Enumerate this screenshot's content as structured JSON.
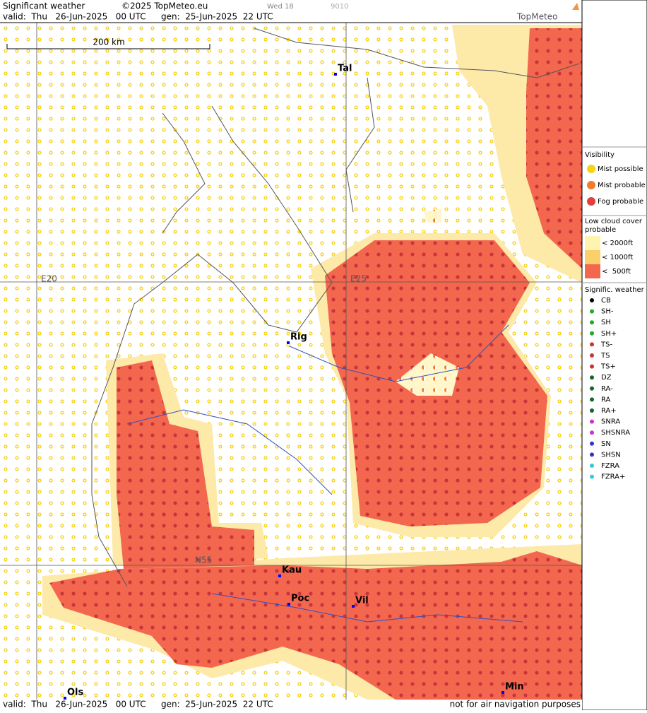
{
  "header": {
    "title": "Significant weather",
    "copyright": "©2025 TopMeteo.eu",
    "day": "Wed 18",
    "code": "9010",
    "valid": "valid:  Thu   26-Jun-2025   00 UTC",
    "generated": "gen:  25-Jun-2025  22 UTC",
    "brand": "TopMeteo"
  },
  "map": {
    "scale": "200 km",
    "grid_labels": [
      "E20",
      "E25",
      "N55"
    ],
    "cities": [
      "Tal",
      "Rig",
      "Kau",
      "Poc",
      "Vil",
      "Min",
      "Ols"
    ]
  },
  "legend": {
    "visibility": {
      "title": "Visibility",
      "items": [
        "Mist possible",
        "Mist probable",
        "Fog probable"
      ]
    },
    "low_cloud": {
      "title_lines": [
        "Low cloud cover",
        "probable"
      ],
      "items": [
        "< 2000ft",
        "< 1000ft",
        "<  500ft"
      ]
    },
    "weather": {
      "title": "Signific. weather",
      "items": [
        "CB",
        "SH-",
        "SH",
        "SH+",
        "TS-",
        "TS",
        "TS+",
        "DZ",
        "RA-",
        "RA",
        "RA+",
        "SNRA",
        "SHSNRA",
        "SN",
        "SHSN",
        "FZRA",
        "FZRA+"
      ]
    }
  },
  "footer": {
    "valid": "valid:  Thu   26-Jun-2025   00 UTC",
    "generated": "gen:  25-Jun-2025  22 UTC",
    "note": "not for air navigation purposes"
  }
}
